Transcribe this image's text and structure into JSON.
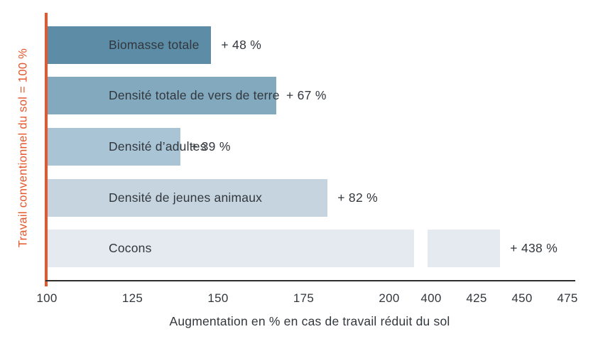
{
  "chart_data": {
    "type": "bar",
    "orientation": "horizontal",
    "xlabel": "Augmentation en % en cas de travail réduit du sol",
    "ylabel": "Travail conventionnel du sol = 100 %",
    "baseline_value": 100,
    "axis_break": {
      "after_value": 200,
      "resume_value": 400
    },
    "x_ticks": [
      100,
      125,
      150,
      175,
      200,
      400,
      425,
      450,
      475
    ],
    "bars": [
      {
        "label": "Biomasse totale",
        "increase_pct": 48,
        "value_label": "+ 48 %",
        "color": "#5C8CA6",
        "broken": false
      },
      {
        "label": "Densité totale de vers de terre",
        "increase_pct": 67,
        "value_label": "+ 67 %",
        "color": "#82A9BE",
        "broken": false
      },
      {
        "label": "Densité d’adultes",
        "increase_pct": 39,
        "value_label": "+ 39 %",
        "color": "#A9C4D5",
        "broken": false
      },
      {
        "label": "Densité de jeunes animaux",
        "increase_pct": 82,
        "value_label": "+ 82 %",
        "color": "#C5D4DF",
        "broken": false
      },
      {
        "label": "Cocons",
        "increase_pct": 438,
        "value_label": "+ 438 %",
        "color": "#E4EAF0",
        "broken": true
      }
    ],
    "accent_color": "#E4572C",
    "text_color": "#32373D"
  }
}
